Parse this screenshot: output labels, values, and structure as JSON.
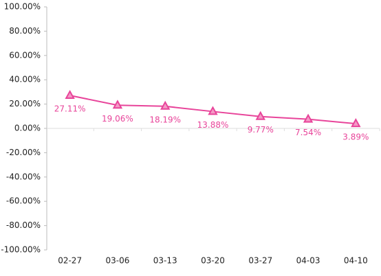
{
  "chart_data": {
    "type": "line",
    "categories": [
      "02-27",
      "03-06",
      "03-13",
      "03-20",
      "03-27",
      "04-03",
      "04-10"
    ],
    "series": [
      {
        "name": "",
        "color": "#e8449a",
        "values": [
          27.11,
          19.06,
          18.19,
          13.88,
          9.77,
          7.54,
          3.89
        ],
        "value_labels": [
          "27.11%",
          "19.06%",
          "18.19%",
          "13.88%",
          "9.77%",
          "7.54%",
          "3.89%"
        ]
      }
    ],
    "ylim": [
      -100,
      100
    ],
    "yticks": [
      {
        "value": -100,
        "label": "-100.00%"
      },
      {
        "value": -80,
        "label": "-80.00%"
      },
      {
        "value": -60,
        "label": "-60.00%"
      },
      {
        "value": -40,
        "label": "-40.00%"
      },
      {
        "value": -20,
        "label": "-20.00%"
      },
      {
        "value": 0,
        "label": "0.00%"
      },
      {
        "value": 20,
        "label": "20.00%"
      },
      {
        "value": 40,
        "label": "40.00%"
      },
      {
        "value": 60,
        "label": "60.00%"
      },
      {
        "value": 80,
        "label": "80.00%"
      },
      {
        "value": 100,
        "label": "100.00%"
      }
    ],
    "grid": false
  }
}
